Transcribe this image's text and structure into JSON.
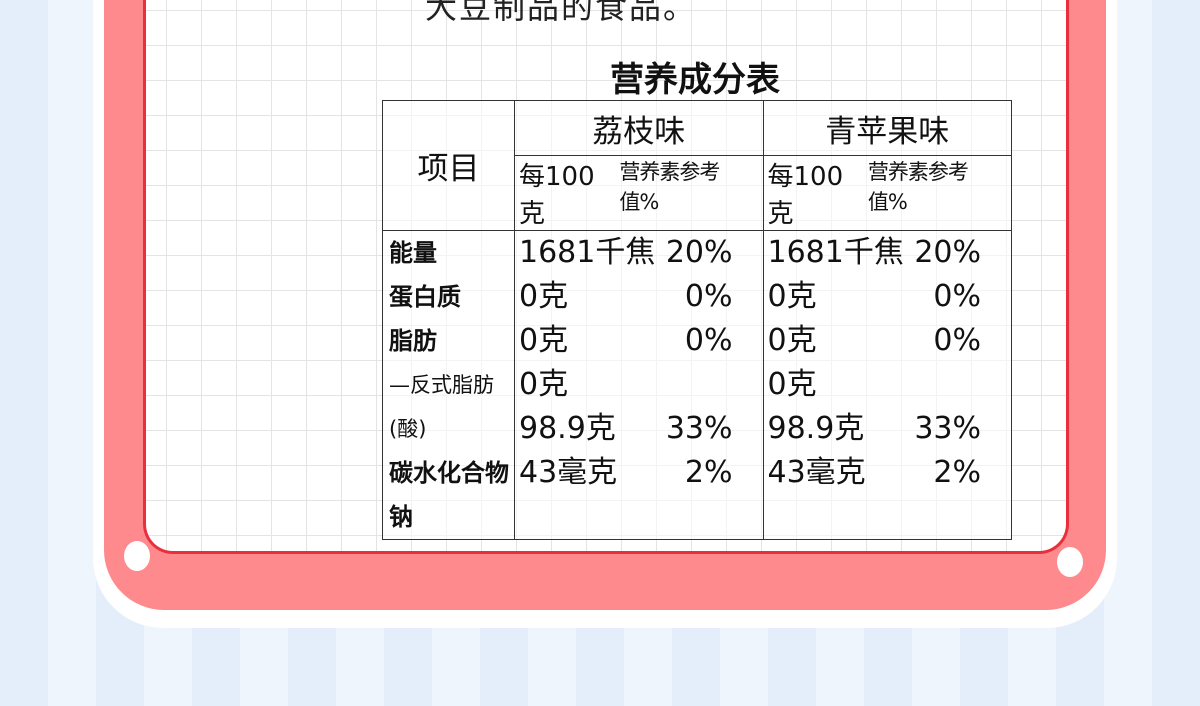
{
  "intro_tail": "大豆制品的食品。",
  "title": "营养成分表",
  "header": {
    "item": "项目",
    "flavors": [
      "荔枝味",
      "青苹果味"
    ],
    "per100": "每100克",
    "nrv": "营养素参考值%"
  },
  "rows": [
    {
      "name": "能量",
      "lychee": [
        "1681千焦",
        "20%"
      ],
      "apple": [
        "1681千焦",
        "20%"
      ]
    },
    {
      "name": "蛋白质",
      "lychee": [
        "0克",
        "0%"
      ],
      "apple": [
        "0克",
        "0%"
      ]
    },
    {
      "name": "脂肪",
      "lychee": [
        "0克",
        "0%"
      ],
      "apple": [
        "0克",
        "0%"
      ]
    },
    {
      "name": "—反式脂肪(酸)",
      "lychee": [
        "0克",
        ""
      ],
      "apple": [
        "0克",
        ""
      ]
    },
    {
      "name": "碳水化合物",
      "lychee": [
        "98.9克",
        "33%"
      ],
      "apple": [
        "98.9克",
        "33%"
      ]
    },
    {
      "name": "钠",
      "lychee": [
        "43毫克",
        "2%"
      ],
      "apple": [
        "43毫克",
        "2%"
      ]
    }
  ],
  "colors": {
    "frame": "#ff8a8e",
    "border": "#e8303c",
    "background": "#e4eefb"
  }
}
